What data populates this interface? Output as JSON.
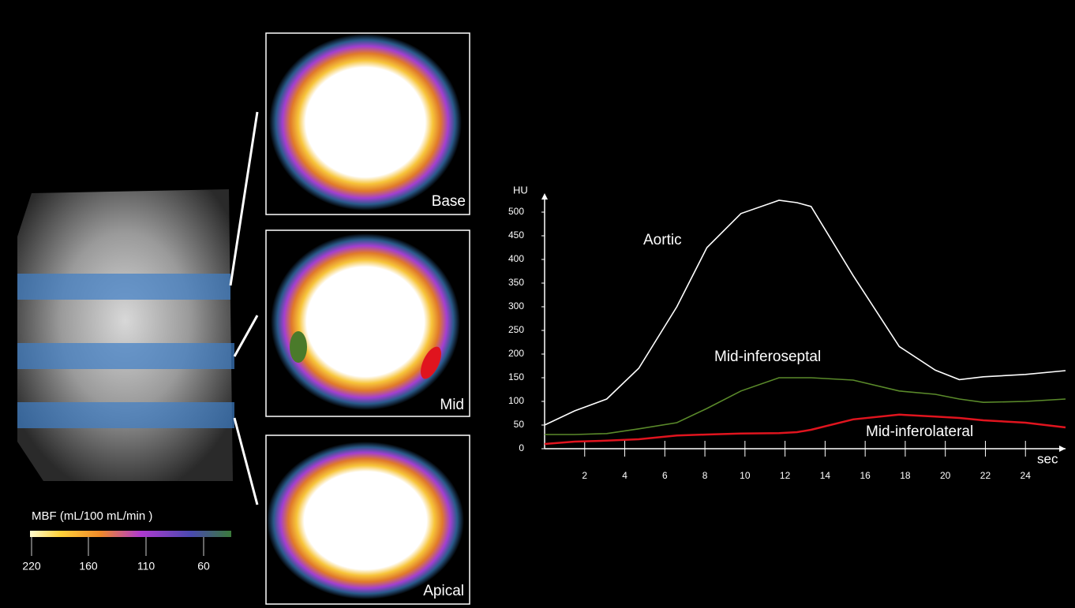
{
  "panels": {
    "slice_labels": [
      "Base",
      "Mid",
      "Apical"
    ],
    "colorbar": {
      "title": "MBF (mL/100 mL/min )",
      "labels": [
        "220",
        "160",
        "110",
        "60"
      ]
    }
  },
  "chart_data": {
    "type": "line",
    "y_label": "HU",
    "x_label": "sec",
    "x": [
      0,
      1.5,
      3.1,
      4.7,
      6.6,
      8.1,
      9.8,
      11.7,
      12.6,
      13.3,
      15.4,
      17.7,
      19.5,
      20.7,
      21.9,
      24,
      26
    ],
    "series": [
      {
        "name": "Aortic",
        "color": "#ffffff",
        "values": [
          50,
          80,
          105,
          170,
          300,
          425,
          497,
          525,
          520,
          512,
          366,
          216,
          166,
          146,
          152,
          157,
          165
        ]
      },
      {
        "name": "Mid-inferoseptal",
        "color": "#5a8a2a",
        "values": [
          30,
          30,
          32,
          42,
          55,
          85,
          122,
          150,
          150,
          150,
          145,
          122,
          115,
          105,
          98,
          100,
          105
        ]
      },
      {
        "name": "Mid-inferolateral",
        "color": "#e0141e",
        "values": [
          10,
          15,
          17,
          20,
          28,
          30,
          32,
          33,
          35,
          40,
          62,
          72,
          68,
          65,
          60,
          55,
          45
        ]
      }
    ],
    "xlim": [
      0,
      26
    ],
    "ylim": [
      0,
      540
    ],
    "xticks": [
      2,
      4,
      6,
      8,
      10,
      12,
      14,
      16,
      18,
      20,
      22,
      24
    ],
    "yticks": [
      0,
      50,
      100,
      150,
      200,
      250,
      300,
      350,
      400,
      450,
      500
    ]
  }
}
